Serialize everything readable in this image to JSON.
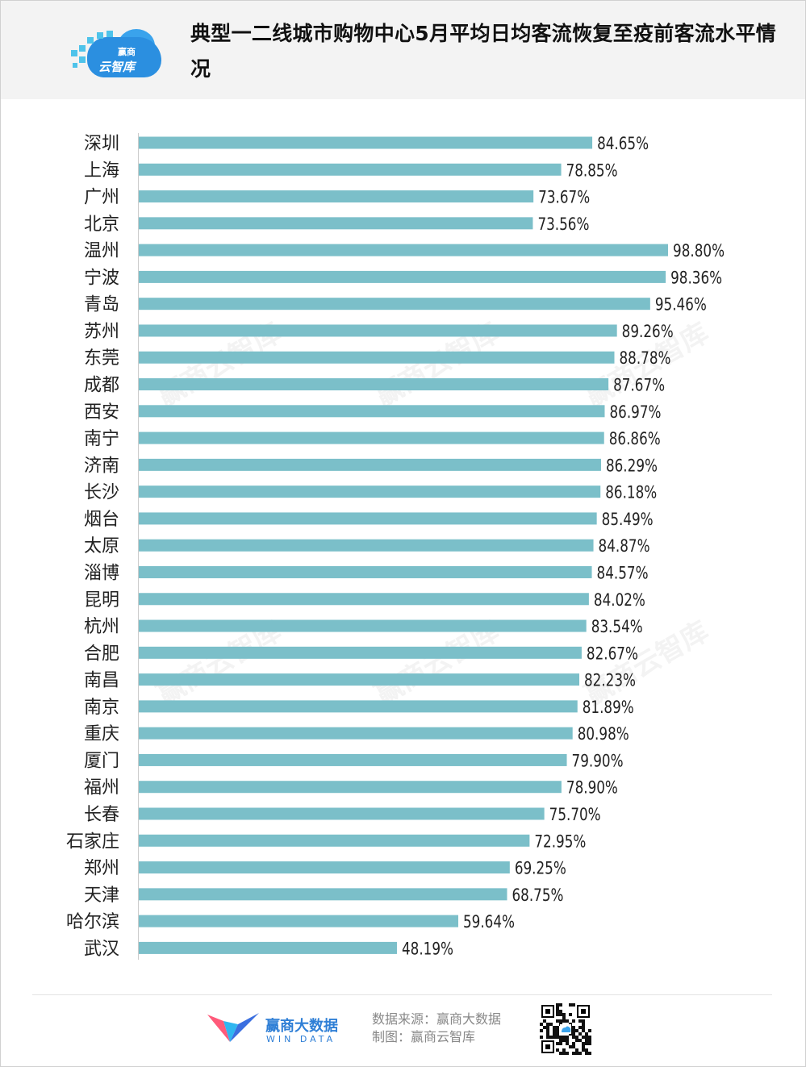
{
  "header": {
    "logo_top": "赢商",
    "logo_main": "云智库",
    "watermark": "赢商云智库"
  },
  "chart_data": {
    "type": "bar",
    "orientation": "horizontal",
    "title": "典型一二线城市购物中心5月平均日均客流恢复至疫前客流水平情况",
    "categories": [
      "深圳",
      "上海",
      "广州",
      "北京",
      "温州",
      "宁波",
      "青岛",
      "苏州",
      "东莞",
      "成都",
      "西安",
      "南宁",
      "济南",
      "长沙",
      "烟台",
      "太原",
      "淄博",
      "昆明",
      "杭州",
      "合肥",
      "南昌",
      "南京",
      "重庆",
      "厦门",
      "福州",
      "长春",
      "石家庄",
      "郑州",
      "天津",
      "哈尔滨",
      "武汉"
    ],
    "values": [
      84.65,
      78.85,
      73.67,
      73.56,
      98.8,
      98.36,
      95.46,
      89.26,
      88.78,
      87.67,
      86.97,
      86.86,
      86.29,
      86.18,
      85.49,
      84.87,
      84.57,
      84.02,
      83.54,
      82.67,
      82.23,
      81.89,
      80.98,
      79.9,
      78.9,
      75.7,
      72.95,
      69.25,
      68.75,
      59.64,
      48.19
    ],
    "value_labels": [
      "84.65%",
      "78.85%",
      "73.67%",
      "73.56%",
      "98.80%",
      "98.36%",
      "95.46%",
      "89.26%",
      "88.78%",
      "87.67%",
      "86.97%",
      "86.86%",
      "86.29%",
      "86.18%",
      "85.49%",
      "84.87%",
      "84.57%",
      "84.02%",
      "83.54%",
      "82.67%",
      "82.23%",
      "81.89%",
      "80.98%",
      "79.90%",
      "78.90%",
      "75.70%",
      "72.95%",
      "69.25%",
      "68.75%",
      "59.64%",
      "48.19%"
    ],
    "xlabel": "",
    "ylabel": "",
    "xlim": [
      0,
      100
    ],
    "grid": false,
    "legend": "none",
    "bar_color": "#7bbfc9"
  },
  "footer": {
    "brand_cn": "赢商大数据",
    "brand_en": "WIN DATA",
    "source": "数据来源：赢商大数据",
    "producer": "制图：赢商云智库"
  }
}
